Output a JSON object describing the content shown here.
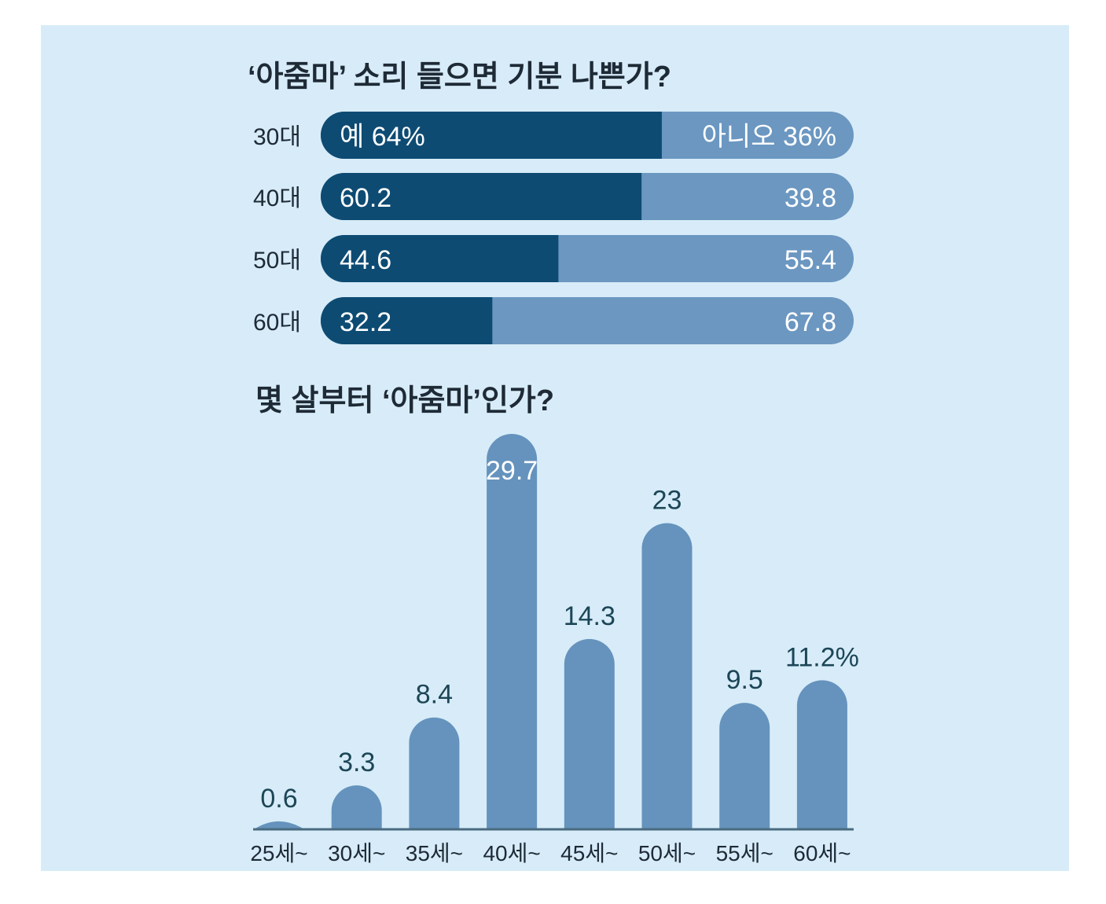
{
  "colors": {
    "background": "#d7ecf8",
    "yes": "#0d4b73",
    "no": "#6b97c1",
    "column": "#6593bd",
    "label": "#1c4657",
    "text": "#1e2a36"
  },
  "chart_data": [
    {
      "type": "bar",
      "orientation": "horizontal-stacked",
      "title": "‘아줌마’ 소리 들으면 기분 나쁜가?",
      "categories": [
        "30대",
        "40대",
        "50대",
        "60대"
      ],
      "series": [
        {
          "name": "예",
          "values": [
            64,
            60.2,
            44.6,
            32.2
          ],
          "labels": [
            "예 64%",
            "60.2",
            "44.6",
            "32.2"
          ]
        },
        {
          "name": "아니오",
          "values": [
            36,
            39.8,
            55.4,
            67.8
          ],
          "labels": [
            "아니오 36%",
            "39.8",
            "55.4",
            "67.8"
          ]
        }
      ],
      "xlim": [
        0,
        100
      ]
    },
    {
      "type": "bar",
      "title": "몇 살부터 ‘아줌마’인가?",
      "categories": [
        "25세~",
        "30세~",
        "35세~",
        "40세~",
        "45세~",
        "50세~",
        "55세~",
        "60세~"
      ],
      "values": [
        0.6,
        3.3,
        8.4,
        29.7,
        14.3,
        23,
        9.5,
        11.2
      ],
      "labels": [
        "0.6",
        "3.3",
        "8.4",
        "29.7",
        "14.3",
        "23",
        "9.5",
        "11.2%"
      ],
      "ylim": [
        0,
        30
      ]
    }
  ]
}
